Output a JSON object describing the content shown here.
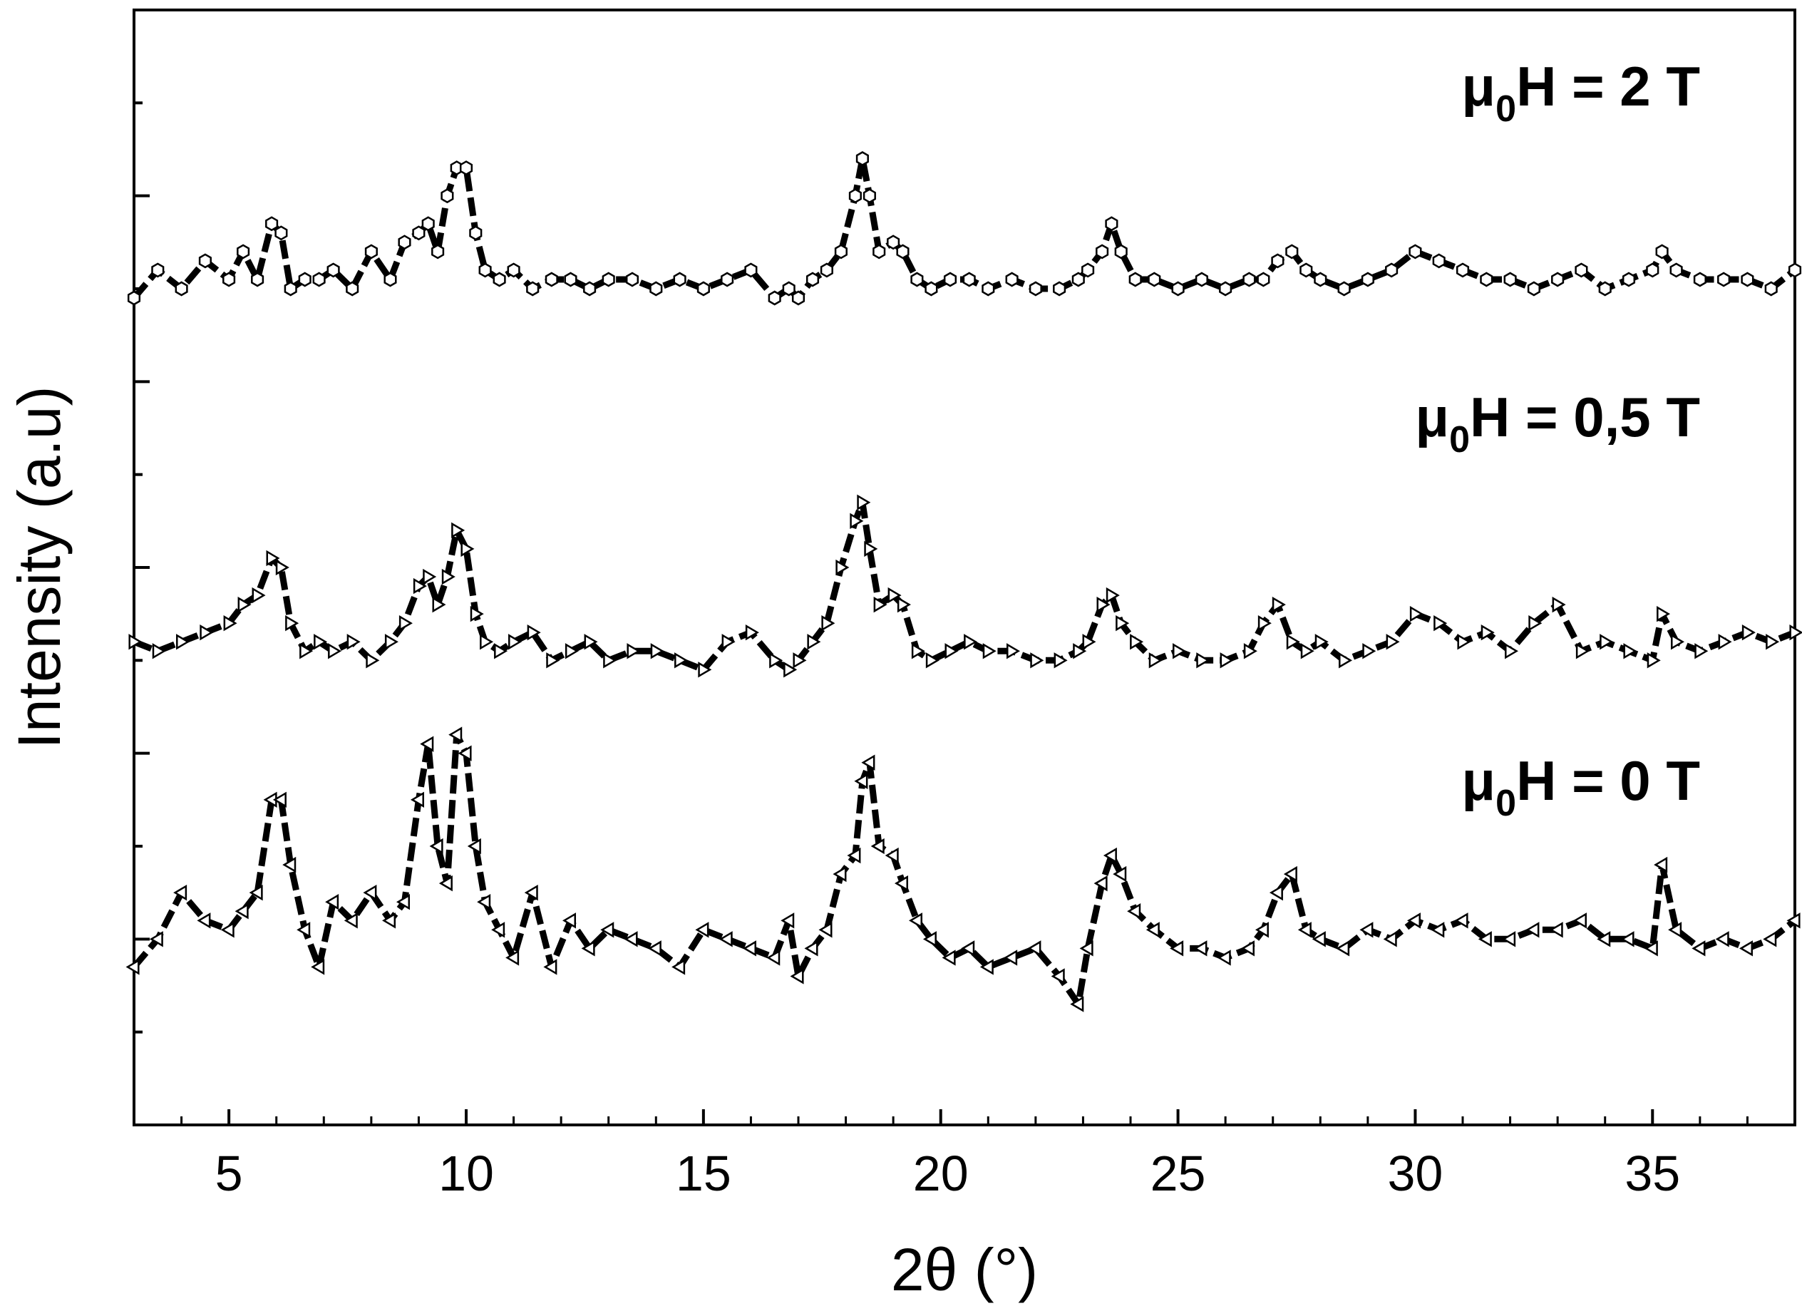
{
  "chart_data": {
    "type": "line",
    "xlabel": "2θ (°)",
    "ylabel": "Intensity (a.u)",
    "xlim": [
      3,
      38
    ],
    "x_ticks": [
      5,
      10,
      15,
      20,
      25,
      30,
      35
    ],
    "x_minor_step": 1,
    "ylim": [
      -0.5,
      5.5
    ],
    "y_ticks": [
      0,
      0.5,
      1,
      1.5,
      2,
      2.5,
      3,
      3.5,
      4,
      4.5,
      5
    ],
    "y_ticks_labeled": false,
    "grid": false,
    "marker_colors": {
      "line": "#000000",
      "marker_fill": "#ffffff",
      "marker_edge": "#000000"
    },
    "series": [
      {
        "name": "μ0H = 0 T",
        "label_parts": {
          "prefix": "μ",
          "sub": "0",
          "rest": "H = 0 T"
        },
        "marker": "triangle-left",
        "x": [
          3.0,
          3.5,
          4.0,
          4.5,
          5.0,
          5.3,
          5.6,
          5.9,
          6.1,
          6.3,
          6.6,
          6.9,
          7.2,
          7.6,
          8.0,
          8.4,
          8.7,
          9.0,
          9.2,
          9.4,
          9.6,
          9.8,
          10.0,
          10.2,
          10.4,
          10.7,
          11.0,
          11.4,
          11.8,
          12.2,
          12.6,
          13.0,
          13.5,
          14.0,
          14.5,
          15.0,
          15.5,
          16.0,
          16.5,
          16.8,
          17.0,
          17.3,
          17.6,
          17.9,
          18.2,
          18.35,
          18.5,
          18.7,
          19.0,
          19.2,
          19.5,
          19.8,
          20.2,
          20.6,
          21.0,
          21.5,
          22.0,
          22.5,
          22.9,
          23.1,
          23.4,
          23.6,
          23.8,
          24.1,
          24.5,
          25.0,
          25.5,
          26.0,
          26.5,
          26.8,
          27.1,
          27.4,
          27.7,
          28.0,
          28.5,
          29.0,
          29.5,
          30.0,
          30.5,
          31.0,
          31.5,
          32.0,
          32.5,
          33.0,
          33.5,
          34.0,
          34.5,
          35.0,
          35.2,
          35.5,
          36.0,
          36.5,
          37.0,
          37.5,
          38.0
        ],
        "y": [
          0.35,
          0.5,
          0.75,
          0.6,
          0.55,
          0.65,
          0.75,
          1.25,
          1.25,
          0.9,
          0.55,
          0.35,
          0.7,
          0.6,
          0.75,
          0.6,
          0.7,
          1.25,
          1.55,
          1.0,
          0.8,
          1.6,
          1.5,
          1.0,
          0.7,
          0.55,
          0.4,
          0.75,
          0.35,
          0.6,
          0.45,
          0.55,
          0.5,
          0.45,
          0.35,
          0.55,
          0.5,
          0.45,
          0.4,
          0.6,
          0.3,
          0.45,
          0.55,
          0.85,
          0.95,
          1.35,
          1.45,
          1.0,
          0.95,
          0.8,
          0.6,
          0.5,
          0.4,
          0.45,
          0.35,
          0.4,
          0.45,
          0.3,
          0.15,
          0.45,
          0.8,
          0.95,
          0.85,
          0.65,
          0.55,
          0.45,
          0.45,
          0.4,
          0.45,
          0.55,
          0.75,
          0.85,
          0.55,
          0.5,
          0.45,
          0.55,
          0.5,
          0.6,
          0.55,
          0.6,
          0.5,
          0.5,
          0.55,
          0.55,
          0.6,
          0.5,
          0.5,
          0.45,
          0.9,
          0.55,
          0.45,
          0.5,
          0.45,
          0.5,
          0.6
        ]
      },
      {
        "name": "μ0H = 0,5 T",
        "label_parts": {
          "prefix": "μ",
          "sub": "0",
          "rest": "H = 0,5 T"
        },
        "marker": "triangle-right",
        "x": [
          3.0,
          3.5,
          4.0,
          4.5,
          5.0,
          5.3,
          5.6,
          5.9,
          6.1,
          6.3,
          6.6,
          6.9,
          7.2,
          7.6,
          8.0,
          8.4,
          8.7,
          9.0,
          9.2,
          9.4,
          9.6,
          9.8,
          10.0,
          10.2,
          10.4,
          10.7,
          11.0,
          11.4,
          11.8,
          12.2,
          12.6,
          13.0,
          13.5,
          14.0,
          14.5,
          15.0,
          15.5,
          16.0,
          16.5,
          16.8,
          17.0,
          17.3,
          17.6,
          17.9,
          18.2,
          18.35,
          18.5,
          18.7,
          19.0,
          19.2,
          19.5,
          19.8,
          20.2,
          20.6,
          21.0,
          21.5,
          22.0,
          22.5,
          22.9,
          23.1,
          23.4,
          23.6,
          23.8,
          24.1,
          24.5,
          25.0,
          25.5,
          26.0,
          26.5,
          26.8,
          27.1,
          27.4,
          27.7,
          28.0,
          28.5,
          29.0,
          29.5,
          30.0,
          30.5,
          31.0,
          31.5,
          32.0,
          32.5,
          33.0,
          33.5,
          34.0,
          34.5,
          35.0,
          35.2,
          35.5,
          36.0,
          36.5,
          37.0,
          37.5,
          38.0
        ],
        "y": [
          2.1,
          2.05,
          2.1,
          2.15,
          2.2,
          2.3,
          2.35,
          2.55,
          2.5,
          2.2,
          2.05,
          2.1,
          2.05,
          2.1,
          2.0,
          2.1,
          2.2,
          2.4,
          2.45,
          2.3,
          2.45,
          2.7,
          2.6,
          2.25,
          2.1,
          2.05,
          2.1,
          2.15,
          2.0,
          2.05,
          2.1,
          2.0,
          2.05,
          2.05,
          2.0,
          1.95,
          2.1,
          2.15,
          2.0,
          1.95,
          2.0,
          2.1,
          2.2,
          2.5,
          2.75,
          2.85,
          2.6,
          2.3,
          2.35,
          2.3,
          2.05,
          2.0,
          2.05,
          2.1,
          2.05,
          2.05,
          2.0,
          2.0,
          2.05,
          2.1,
          2.3,
          2.35,
          2.2,
          2.1,
          2.0,
          2.05,
          2.0,
          2.0,
          2.05,
          2.2,
          2.3,
          2.1,
          2.05,
          2.1,
          2.0,
          2.05,
          2.1,
          2.25,
          2.2,
          2.1,
          2.15,
          2.05,
          2.2,
          2.3,
          2.05,
          2.1,
          2.05,
          2.0,
          2.25,
          2.1,
          2.05,
          2.1,
          2.15,
          2.1,
          2.15
        ]
      },
      {
        "name": "μ0H = 2 T",
        "label_parts": {
          "prefix": "μ",
          "sub": "0",
          "rest": "H = 2 T"
        },
        "marker": "hexagon",
        "x": [
          3.0,
          3.5,
          4.0,
          4.5,
          5.0,
          5.3,
          5.6,
          5.9,
          6.1,
          6.3,
          6.6,
          6.9,
          7.2,
          7.6,
          8.0,
          8.4,
          8.7,
          9.0,
          9.2,
          9.4,
          9.6,
          9.8,
          10.0,
          10.2,
          10.4,
          10.7,
          11.0,
          11.4,
          11.8,
          12.2,
          12.6,
          13.0,
          13.5,
          14.0,
          14.5,
          15.0,
          15.5,
          16.0,
          16.5,
          16.8,
          17.0,
          17.3,
          17.6,
          17.9,
          18.2,
          18.35,
          18.5,
          18.7,
          19.0,
          19.2,
          19.5,
          19.8,
          20.2,
          20.6,
          21.0,
          21.5,
          22.0,
          22.5,
          22.9,
          23.1,
          23.4,
          23.6,
          23.8,
          24.1,
          24.5,
          25.0,
          25.5,
          26.0,
          26.5,
          26.8,
          27.1,
          27.4,
          27.7,
          28.0,
          28.5,
          29.0,
          29.5,
          30.0,
          30.5,
          31.0,
          31.5,
          32.0,
          32.5,
          33.0,
          33.5,
          34.0,
          34.5,
          35.0,
          35.2,
          35.5,
          36.0,
          36.5,
          37.0,
          37.5,
          38.0
        ],
        "y": [
          3.95,
          4.1,
          4.0,
          4.15,
          4.05,
          4.2,
          4.05,
          4.35,
          4.3,
          4.0,
          4.05,
          4.05,
          4.1,
          4.0,
          4.2,
          4.05,
          4.25,
          4.3,
          4.35,
          4.2,
          4.5,
          4.65,
          4.65,
          4.3,
          4.1,
          4.05,
          4.1,
          4.0,
          4.05,
          4.05,
          4.0,
          4.05,
          4.05,
          4.0,
          4.05,
          4.0,
          4.05,
          4.1,
          3.95,
          4.0,
          3.95,
          4.05,
          4.1,
          4.2,
          4.5,
          4.7,
          4.5,
          4.2,
          4.25,
          4.2,
          4.05,
          4.0,
          4.05,
          4.05,
          4.0,
          4.05,
          4.0,
          4.0,
          4.05,
          4.1,
          4.2,
          4.35,
          4.2,
          4.05,
          4.05,
          4.0,
          4.05,
          4.0,
          4.05,
          4.05,
          4.15,
          4.2,
          4.1,
          4.05,
          4.0,
          4.05,
          4.1,
          4.2,
          4.15,
          4.1,
          4.05,
          4.05,
          4.0,
          4.05,
          4.1,
          4.0,
          4.05,
          4.1,
          4.2,
          4.1,
          4.05,
          4.05,
          4.05,
          4.0,
          4.1
        ]
      }
    ]
  }
}
